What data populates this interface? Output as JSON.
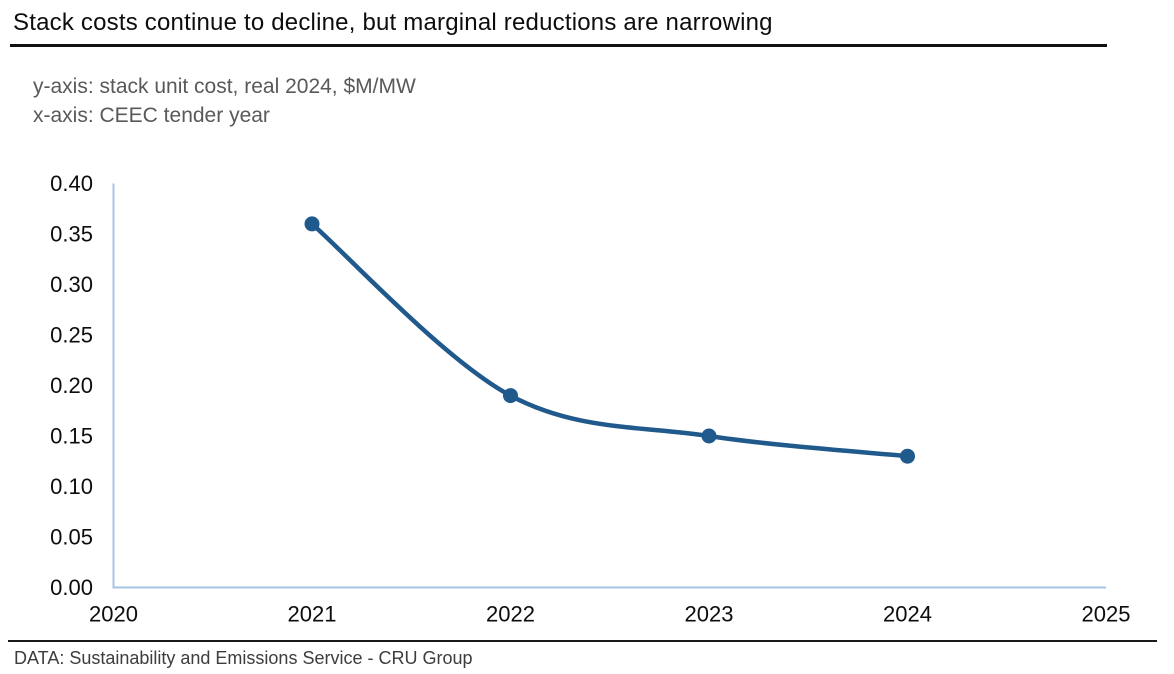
{
  "header": {
    "title": "Stack costs continue to decline, but marginal reductions are narrowing",
    "subtitle_line1": "y-axis: stack unit cost, real 2024, $M/MW",
    "subtitle_line2": "x-axis: CEEC tender year"
  },
  "footer": {
    "source": "DATA: Sustainability and Emissions Service - CRU Group"
  },
  "chart_data": {
    "type": "line",
    "title": "Stack costs continue to decline, but marginal reductions are narrowing",
    "x": [
      2021,
      2022,
      2023,
      2024
    ],
    "values": [
      0.36,
      0.19,
      0.15,
      0.13
    ],
    "xlabel": "CEEC tender year",
    "ylabel": "stack unit cost, real 2024, $M/MW",
    "xlim": [
      2020,
      2025
    ],
    "ylim": [
      0.0,
      0.4
    ],
    "xticks": [
      2020,
      2021,
      2022,
      2023,
      2024,
      2025
    ],
    "yticks": [
      0.0,
      0.05,
      0.1,
      0.15,
      0.2,
      0.25,
      0.3,
      0.35,
      0.4
    ],
    "ytick_format": "0.00",
    "grid": false,
    "legend": "none",
    "smooth": true,
    "marker": "circle",
    "line_color": "#20598C",
    "axis_color": "#A6C4E4"
  }
}
